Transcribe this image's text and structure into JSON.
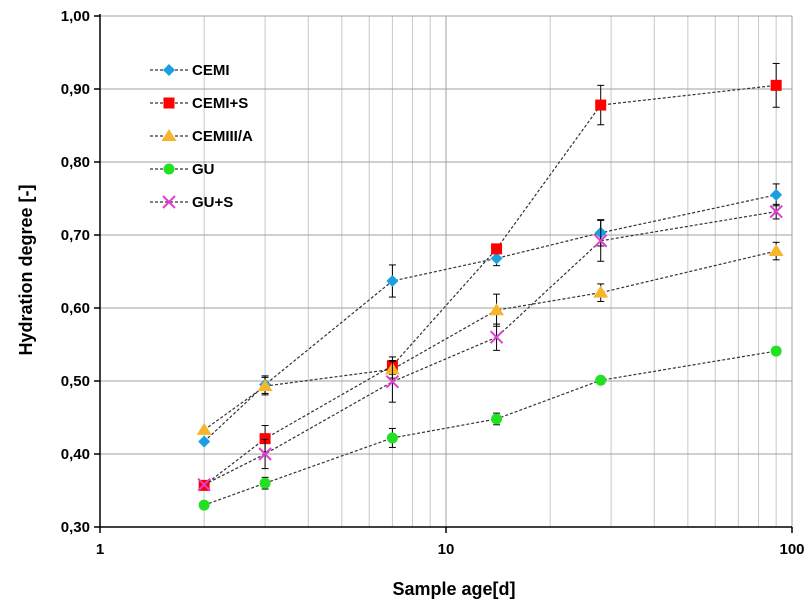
{
  "chart_data": {
    "type": "scatter",
    "x_scale": "log",
    "xlim": [
      1,
      100
    ],
    "ylim": [
      0.3,
      1.0
    ],
    "xlabel": "Sample age[d]",
    "ylabel": "Hydration degree [-]",
    "x_ticks": [
      "1",
      "10",
      "100"
    ],
    "y_ticks": [
      "0,30",
      "0,40",
      "0,50",
      "0,60",
      "0,70",
      "0,80",
      "0,90",
      "1,00"
    ],
    "grid": "x minor and major gridlines on; y major gridlines on",
    "legend_position": "top-left",
    "series": [
      {
        "name": "CEMI",
        "marker": "diamond",
        "color": "#1aa0e0",
        "x": [
          2,
          3,
          7,
          14,
          28,
          90
        ],
        "y": [
          0.417,
          0.495,
          0.637,
          0.668,
          0.703,
          0.755
        ],
        "err": [
          0.0,
          0.012,
          0.022,
          0.01,
          0.018,
          0.015
        ]
      },
      {
        "name": "CEMI+S",
        "marker": "square",
        "color": "#ff0000",
        "x": [
          2,
          3,
          7,
          14,
          28,
          90
        ],
        "y": [
          0.357,
          0.421,
          0.521,
          0.681,
          0.878,
          0.905
        ],
        "err": [
          0.0,
          0.018,
          0.012,
          0.0,
          0.027,
          0.03
        ]
      },
      {
        "name": "CEMIII/A",
        "marker": "triangle",
        "color": "#f7b52c",
        "x": [
          2,
          3,
          7,
          14,
          28,
          90
        ],
        "y": [
          0.433,
          0.493,
          0.516,
          0.597,
          0.621,
          0.678
        ],
        "err": [
          0.0,
          0.012,
          0.012,
          0.022,
          0.012,
          0.012
        ]
      },
      {
        "name": "GU",
        "marker": "circle",
        "color": "#22e022",
        "x": [
          2,
          3,
          7,
          14,
          28,
          90
        ],
        "y": [
          0.33,
          0.36,
          0.422,
          0.448,
          0.501,
          0.541
        ],
        "err": [
          0.0,
          0.008,
          0.013,
          0.008,
          0.0,
          0.0
        ]
      },
      {
        "name": "GU+S",
        "marker": "x",
        "color": "#e040d0",
        "x": [
          2,
          3,
          7,
          14,
          28,
          90
        ],
        "y": [
          0.358,
          0.4,
          0.499,
          0.56,
          0.692,
          0.732
        ],
        "err": [
          0.0,
          0.02,
          0.028,
          0.018,
          0.028,
          0.01
        ]
      }
    ]
  }
}
